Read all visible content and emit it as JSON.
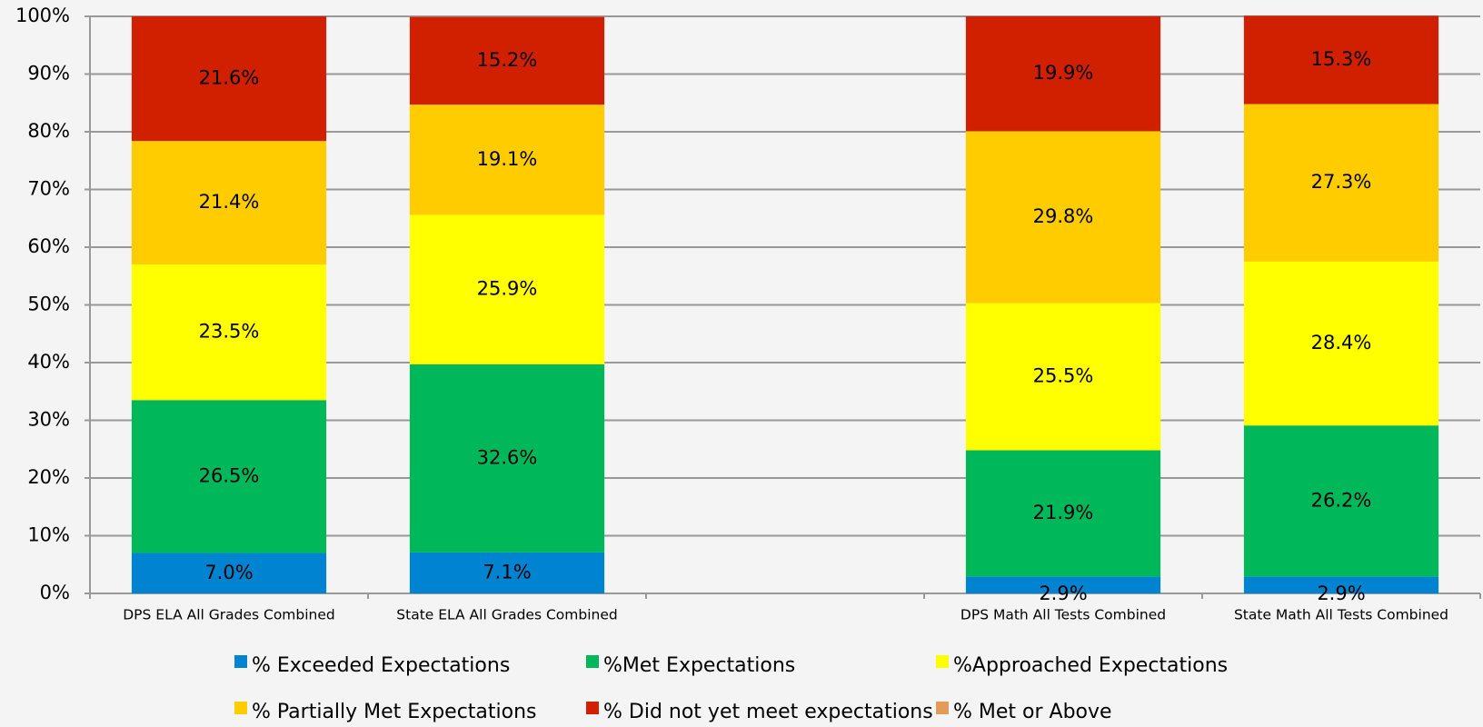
{
  "chart_data": {
    "type": "stacked-bar",
    "categories": [
      "DPS ELA All Grades Combined",
      "State ELA All Grades Combined",
      null,
      "DPS Math All Tests Combined",
      "State Math All Tests Combined"
    ],
    "series": [
      {
        "name": "% Exceeded Expectations",
        "color": "#0083d0",
        "values": [
          7.0,
          7.1,
          null,
          2.9,
          2.9
        ],
        "value_labels": [
          "7.0%",
          "7.1%",
          null,
          "2.9%",
          "2.9%"
        ]
      },
      {
        "name": "%Met Expectations",
        "color": "#00b85a",
        "values": [
          26.5,
          32.6,
          null,
          21.9,
          26.2
        ],
        "value_labels": [
          "26.5%",
          "32.6%",
          null,
          "21.9%",
          "26.2%"
        ]
      },
      {
        "name": "%Approached Expectations",
        "color": "#ffff00",
        "values": [
          23.5,
          25.9,
          null,
          25.5,
          28.4
        ],
        "value_labels": [
          "23.5%",
          "25.9%",
          null,
          "25.5%",
          "28.4%"
        ]
      },
      {
        "name": "% Partially Met Expectations",
        "color": "#ffcc00",
        "values": [
          21.4,
          19.1,
          null,
          29.8,
          27.3
        ],
        "value_labels": [
          "21.4%",
          "19.1%",
          null,
          "29.8%",
          "27.3%"
        ]
      },
      {
        "name": "% Did not yet meet expectations",
        "color": "#d02000",
        "values": [
          21.6,
          15.2,
          null,
          19.9,
          15.3
        ],
        "value_labels": [
          "21.6%",
          "15.2%",
          null,
          "19.9%",
          "15.3%"
        ]
      },
      {
        "name": "% Met or Above",
        "color": "#e39a5a",
        "values": [
          null,
          null,
          null,
          null,
          null
        ]
      }
    ],
    "ylim": [
      0,
      100
    ],
    "yticks": [
      {
        "value": 0,
        "label": "0%"
      },
      {
        "value": 10,
        "label": "10%"
      },
      {
        "value": 20,
        "label": "20%"
      },
      {
        "value": 30,
        "label": "30%"
      },
      {
        "value": 40,
        "label": "40%"
      },
      {
        "value": 50,
        "label": "50%"
      },
      {
        "value": 60,
        "label": "60%"
      },
      {
        "value": 70,
        "label": "70%"
      },
      {
        "value": 80,
        "label": "80%"
      },
      {
        "value": 90,
        "label": "90%"
      },
      {
        "value": 100,
        "label": "100%"
      }
    ],
    "grid": true,
    "legend": "bottom"
  }
}
